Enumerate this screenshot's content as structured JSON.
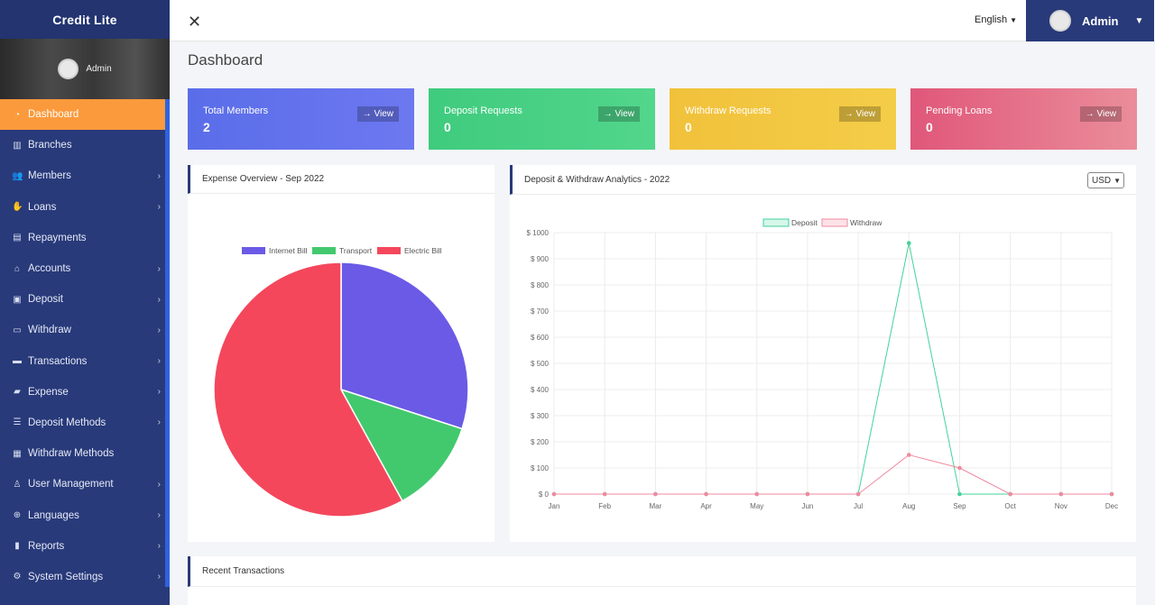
{
  "sidebar": {
    "brand": "Credit Lite",
    "user": "Admin",
    "items": [
      {
        "label": "Dashboard",
        "icon": "dashboard-icon",
        "has_sub": false
      },
      {
        "label": "Branches",
        "icon": "building-icon",
        "has_sub": false
      },
      {
        "label": "Members",
        "icon": "users-icon",
        "has_sub": true
      },
      {
        "label": "Loans",
        "icon": "hand-money-icon",
        "has_sub": true
      },
      {
        "label": "Repayments",
        "icon": "receipt-icon",
        "has_sub": false
      },
      {
        "label": "Accounts",
        "icon": "bank-icon",
        "has_sub": true
      },
      {
        "label": "Deposit",
        "icon": "deposit-icon",
        "has_sub": true
      },
      {
        "label": "Withdraw",
        "icon": "card-icon",
        "has_sub": true
      },
      {
        "label": "Transactions",
        "icon": "wallet-icon",
        "has_sub": true
      },
      {
        "label": "Expense",
        "icon": "cash-icon",
        "has_sub": true
      },
      {
        "label": "Deposit Methods",
        "icon": "list-icon",
        "has_sub": true
      },
      {
        "label": "Withdraw Methods",
        "icon": "clipboard-icon",
        "has_sub": false
      },
      {
        "label": "User Management",
        "icon": "user-icon",
        "has_sub": true
      },
      {
        "label": "Languages",
        "icon": "globe-icon",
        "has_sub": true
      },
      {
        "label": "Reports",
        "icon": "bar-chart-icon",
        "has_sub": true
      },
      {
        "label": "System Settings",
        "icon": "gear-icon",
        "has_sub": true
      }
    ]
  },
  "topbar": {
    "language": "English",
    "user": "Admin"
  },
  "page_title": "Dashboard",
  "cards": [
    {
      "label": "Total Members",
      "value": "2",
      "button": "View"
    },
    {
      "label": "Deposit Requests",
      "value": "0",
      "button": "View"
    },
    {
      "label": "Withdraw Requests",
      "value": "0",
      "button": "View"
    },
    {
      "label": "Pending Loans",
      "value": "0",
      "button": "View"
    }
  ],
  "expense_panel": {
    "title": "Expense Overview - Sep 2022"
  },
  "analytics_panel": {
    "title": "Deposit & Withdraw Analytics - 2022",
    "currency": "USD"
  },
  "transactions_panel": {
    "title": "Recent Transactions"
  },
  "colors": {
    "sidebar": "#283a7a",
    "active": "#fb9a3c",
    "internet": "#6a5ae6",
    "transport": "#42c96e",
    "electric": "#f4475c",
    "deposit": "#42d39a",
    "withdraw": "#f08aa0"
  },
  "chart_data": [
    {
      "type": "pie",
      "labels": [
        "Internet Bill",
        "Transport",
        "Electric Bill"
      ],
      "values": [
        30,
        12,
        58
      ],
      "legend": "top"
    },
    {
      "type": "line",
      "categories": [
        "Jan",
        "Feb",
        "Mar",
        "Apr",
        "May",
        "Jun",
        "Jul",
        "Aug",
        "Sep",
        "Oct",
        "Nov",
        "Dec"
      ],
      "series": [
        {
          "name": "Deposit",
          "values": [
            0,
            0,
            0,
            0,
            0,
            0,
            0,
            960,
            0,
            0,
            0,
            0
          ]
        },
        {
          "name": "Withdraw",
          "values": [
            0,
            0,
            0,
            0,
            0,
            0,
            0,
            150,
            100,
            0,
            0,
            0
          ]
        }
      ],
      "yticks": [
        "$ 0",
        "$ 100",
        "$ 200",
        "$ 300",
        "$ 400",
        "$ 500",
        "$ 600",
        "$ 700",
        "$ 800",
        "$ 900",
        "$ 1000"
      ],
      "ylim": [
        0,
        1000
      ],
      "grid": true,
      "legend": "top"
    }
  ]
}
